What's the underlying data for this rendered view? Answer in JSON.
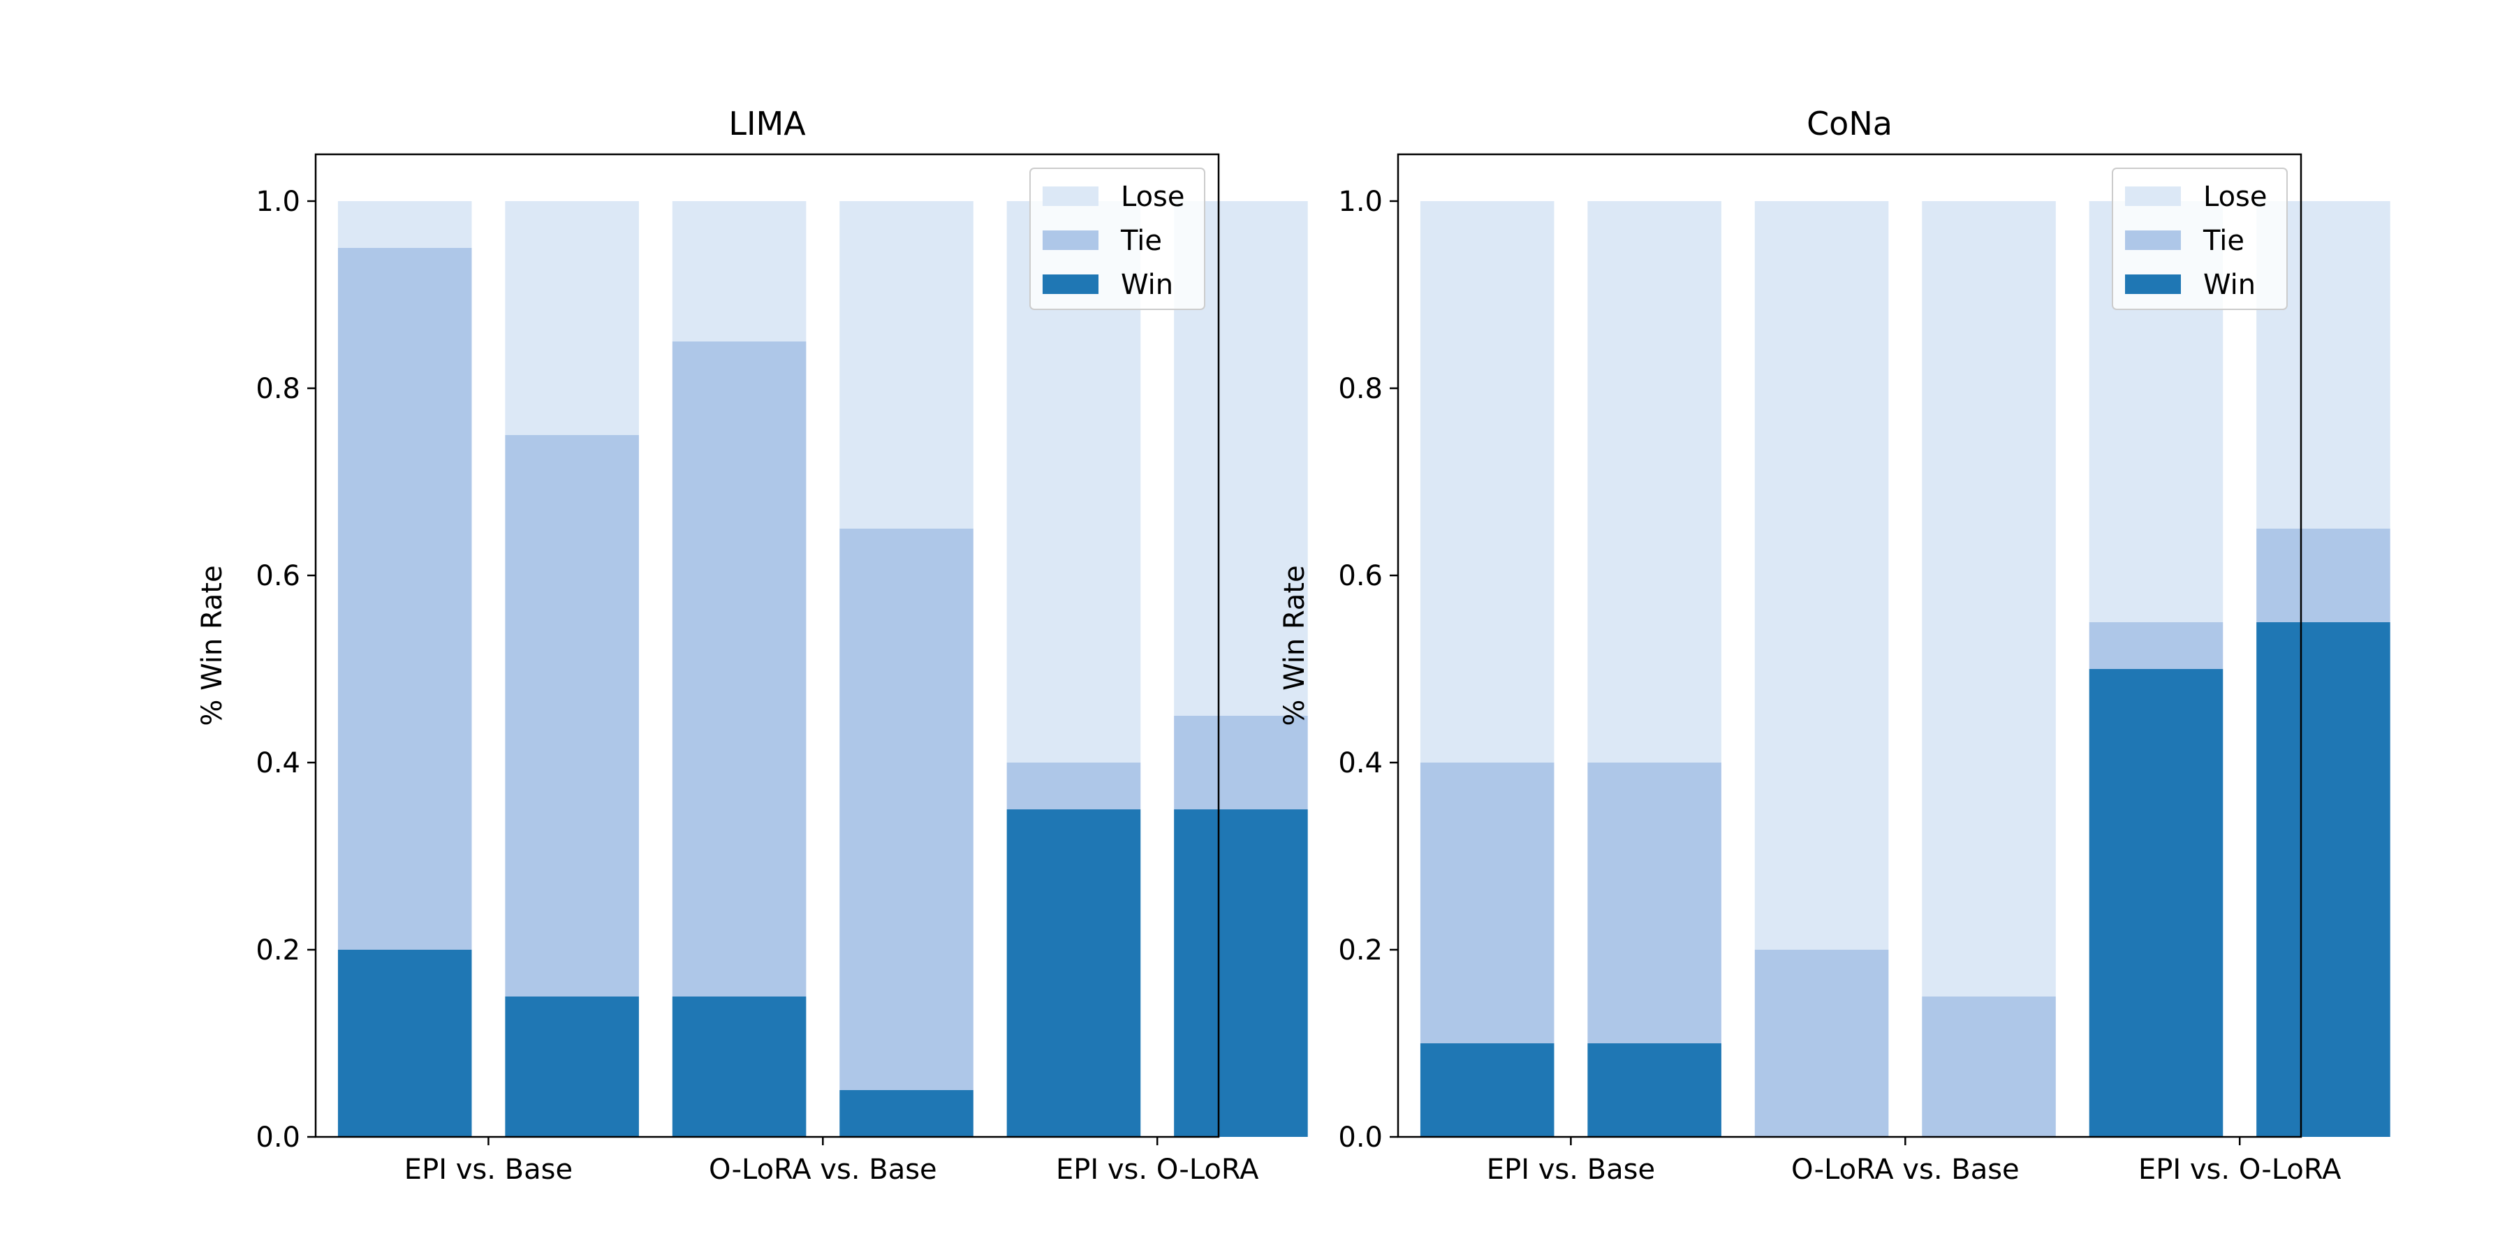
{
  "chart_data": [
    {
      "type": "bar",
      "stacked": true,
      "title": "LIMA",
      "xlabel": "",
      "ylabel": "% Win Rate",
      "ylim": [
        0,
        1.05
      ],
      "yticks": [
        "0.0",
        "0.2",
        "0.4",
        "0.6",
        "0.8",
        "1.0"
      ],
      "categories": [
        "EPI vs. Base",
        "O-LoRA vs. Base",
        "EPI vs. O-LoRA"
      ],
      "bars_per_category": 2,
      "grid": false,
      "legend": {
        "position": "top-right",
        "order": [
          "Lose",
          "Tie",
          "Win"
        ]
      },
      "series": [
        {
          "name": "Win",
          "color": "#1f77b4",
          "values": [
            [
              0.2,
              0.15
            ],
            [
              0.15,
              0.05
            ],
            [
              0.35,
              0.35
            ]
          ]
        },
        {
          "name": "Tie",
          "color": "#aec7e8",
          "values": [
            [
              0.75,
              0.6
            ],
            [
              0.7,
              0.6
            ],
            [
              0.05,
              0.1
            ]
          ]
        },
        {
          "name": "Lose",
          "color": "#dce8f6",
          "values": [
            [
              0.05,
              0.25
            ],
            [
              0.15,
              0.35
            ],
            [
              0.6,
              0.55
            ]
          ]
        }
      ]
    },
    {
      "type": "bar",
      "stacked": true,
      "title": "CoNa",
      "xlabel": "",
      "ylabel": "% Win Rate",
      "ylim": [
        0,
        1.05
      ],
      "yticks": [
        "0.0",
        "0.2",
        "0.4",
        "0.6",
        "0.8",
        "1.0"
      ],
      "categories": [
        "EPI vs. Base",
        "O-LoRA vs. Base",
        "EPI vs. O-LoRA"
      ],
      "bars_per_category": 2,
      "grid": false,
      "legend": {
        "position": "top-right",
        "order": [
          "Lose",
          "Tie",
          "Win"
        ]
      },
      "series": [
        {
          "name": "Win",
          "color": "#1f77b4",
          "values": [
            [
              0.1,
              0.1
            ],
            [
              0.0,
              0.0
            ],
            [
              0.5,
              0.55
            ]
          ]
        },
        {
          "name": "Tie",
          "color": "#aec7e8",
          "values": [
            [
              0.3,
              0.3
            ],
            [
              0.2,
              0.15
            ],
            [
              0.05,
              0.1
            ]
          ]
        },
        {
          "name": "Lose",
          "color": "#dce8f6",
          "values": [
            [
              0.6,
              0.6
            ],
            [
              0.8,
              0.85
            ],
            [
              0.45,
              0.35
            ]
          ]
        }
      ]
    }
  ]
}
